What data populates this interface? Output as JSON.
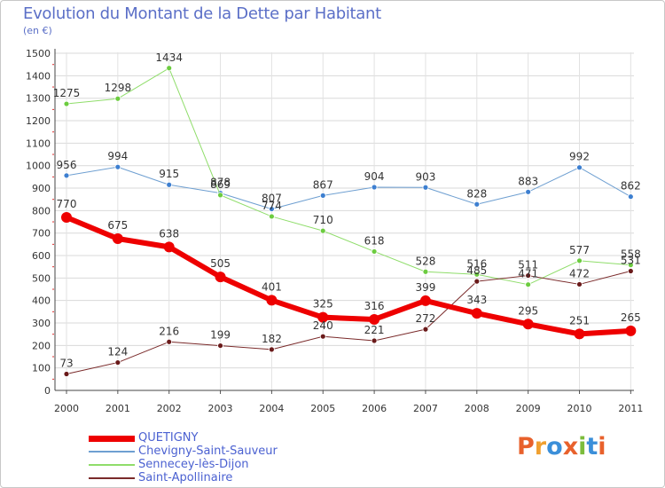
{
  "header": {
    "title": "Evolution du Montant de la Dette par Habitant",
    "unit": "(en €)"
  },
  "logo": {
    "text": "Proxiti",
    "colors": [
      "#e8612c",
      "#f0a030",
      "#3b8fd9",
      "#e8612c",
      "#7cbc3c",
      "#3b8fd9",
      "#e8612c"
    ]
  },
  "chart_data": {
    "type": "line",
    "title": "Evolution du Montant de la Dette par Habitant",
    "subtitle": "(en €)",
    "xlabel": "",
    "ylabel": "",
    "x": [
      "2000",
      "2001",
      "2002",
      "2003",
      "2004",
      "2005",
      "2006",
      "2007",
      "2008",
      "2009",
      "2010",
      "2011"
    ],
    "ylim": [
      0,
      1500
    ],
    "yticks": [
      0,
      100,
      200,
      300,
      400,
      500,
      600,
      700,
      800,
      900,
      1000,
      1100,
      1200,
      1300,
      1400,
      1500
    ],
    "grid": true,
    "legend_position": "bottom-left",
    "series": [
      {
        "name": "QUETIGNY",
        "color": "#ee0000",
        "markerColor": "#ee0000",
        "width": 6,
        "values": [
          770,
          675,
          638,
          505,
          401,
          325,
          316,
          399,
          343,
          295,
          251,
          265
        ]
      },
      {
        "name": "Chevigny-Saint-Sauveur",
        "color": "#6e9fd1",
        "markerColor": "#3d7fd0",
        "width": 1,
        "values": [
          956,
          994,
          915,
          878,
          807,
          867,
          904,
          903,
          828,
          883,
          992,
          862
        ]
      },
      {
        "name": "Sennecey-lès-Dijon",
        "color": "#8fdd6a",
        "markerColor": "#6ccc3f",
        "width": 1,
        "values": [
          1275,
          1298,
          1434,
          869,
          774,
          710,
          618,
          528,
          516,
          471,
          577,
          558
        ]
      },
      {
        "name": "Saint-Apollinaire",
        "color": "#7a2a2a",
        "markerColor": "#6a1a1a",
        "width": 1,
        "values": [
          73,
          124,
          216,
          199,
          182,
          240,
          221,
          272,
          485,
          511,
          472,
          531
        ]
      }
    ],
    "labels_shown": [
      [
        "770",
        "675",
        "638",
        "505",
        "401",
        "325",
        "316",
        "399",
        "343",
        "295",
        "251",
        "265"
      ],
      [
        "956",
        "994",
        "915",
        "878",
        "807",
        "867",
        "904",
        "903",
        "828",
        "883",
        "992",
        "862"
      ],
      [
        "1275",
        "1298",
        "1434",
        "869",
        "774",
        "710",
        "618",
        "528",
        "516",
        "471",
        "577",
        "558"
      ],
      [
        "73",
        "124",
        "216",
        "199",
        "182",
        "240",
        "221",
        "272",
        "485",
        "511",
        "472",
        "531"
      ]
    ]
  }
}
